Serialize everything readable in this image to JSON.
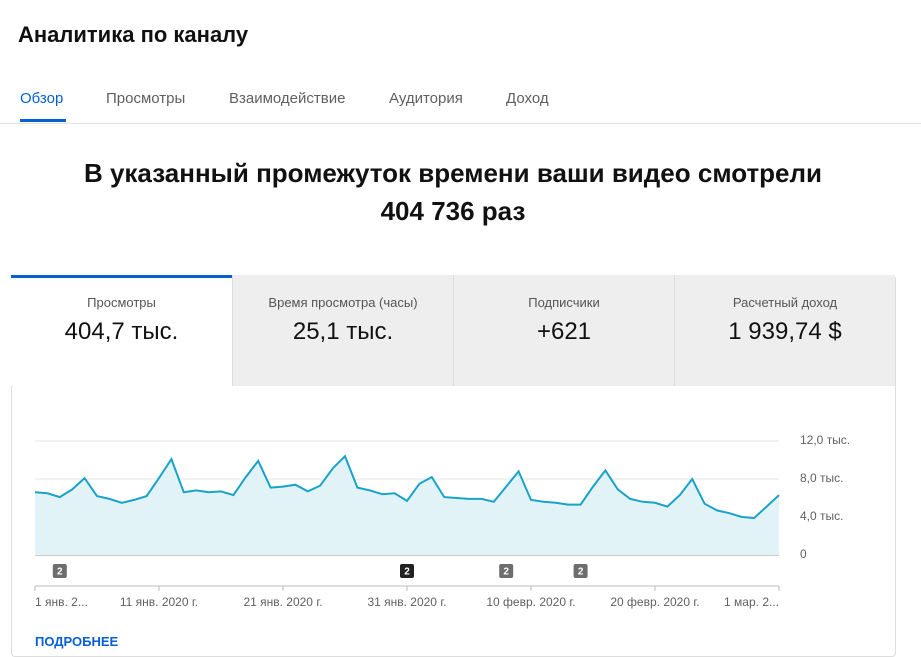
{
  "header": {
    "title": "Аналитика по каналу"
  },
  "tabs": [
    {
      "label": "Обзор",
      "active": true
    },
    {
      "label": "Просмотры",
      "active": false
    },
    {
      "label": "Взаимодействие",
      "active": false
    },
    {
      "label": "Аудитория",
      "active": false
    },
    {
      "label": "Доход",
      "active": false
    }
  ],
  "headline": {
    "text": "В указанный промежуток времени ваши видео смотрели",
    "count": "404 736 раз"
  },
  "metrics": [
    {
      "label": "Просмотры",
      "value": "404,7 тыс.",
      "active": true
    },
    {
      "label": "Время просмотра (часы)",
      "value": "25,1 тыс.",
      "active": false
    },
    {
      "label": "Подписчики",
      "value": "+621",
      "active": false
    },
    {
      "label": "Расчетный доход",
      "value": "1 939,74 $",
      "active": false
    }
  ],
  "chart": {
    "type": "line",
    "color": "#1aa3c8",
    "fill": "#e2f3f8",
    "values": [
      6.6,
      6.5,
      6.1,
      6.9,
      8.1,
      6.2,
      5.9,
      5.5,
      5.8,
      6.2,
      8.1,
      10.1,
      6.6,
      6.8,
      6.6,
      6.7,
      6.3,
      8.2,
      9.9,
      7.1,
      7.2,
      7.4,
      6.7,
      7.3,
      9.1,
      10.4,
      7.1,
      6.8,
      6.4,
      6.5,
      5.7,
      7.5,
      8.2,
      6.1,
      6.0,
      5.9,
      5.9,
      5.6,
      7.2,
      8.8,
      5.8,
      5.6,
      5.5,
      5.3,
      5.3,
      7.2,
      8.9,
      6.9,
      5.9,
      5.6,
      5.5,
      5.1,
      6.3,
      8.0,
      5.4,
      4.7,
      4.4,
      4.0,
      3.9,
      5.1,
      6.3
    ],
    "ylim": [
      0,
      12
    ],
    "yticks": [
      0,
      {
        "value": 4,
        "label": "4,0 тыс."
      },
      {
        "value": 8,
        "label": "8,0 тыс."
      },
      {
        "value": 12,
        "label": "12,0 тыс."
      }
    ],
    "xlim": [
      0,
      60
    ],
    "xticks": [
      {
        "value": 0,
        "label": "1 янв. 2..."
      },
      {
        "value": 10,
        "label": "11 янв. 2020 г."
      },
      {
        "value": 20,
        "label": "21 янв. 2020 г."
      },
      {
        "value": 30,
        "label": "31 янв. 2020 г."
      },
      {
        "value": 40,
        "label": "10 февр. 2020 г."
      },
      {
        "value": 50,
        "label": "20 февр. 2020 г."
      },
      {
        "value": 60,
        "label": "1 мар. 2..."
      }
    ],
    "annotations": [
      {
        "x": 2,
        "label": "2",
        "highlight": false
      },
      {
        "x": 30,
        "label": "2",
        "highlight": true
      },
      {
        "x": 38,
        "label": "2",
        "highlight": false
      },
      {
        "x": 44,
        "label": "2",
        "highlight": false
      }
    ]
  },
  "more_link": "ПОДРОБНЕЕ"
}
